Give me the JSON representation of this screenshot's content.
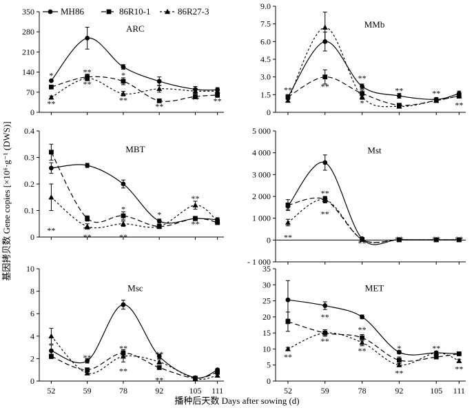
{
  "figure": {
    "ylabel": "基因拷贝数 Gene copies [×10⁶·g⁻¹ (DWS)]",
    "xlabel": "播种后天数 Days after sowing (d)",
    "legend": [
      {
        "name": "MH86",
        "marker": "circle",
        "dash": "solid"
      },
      {
        "name": "86R10-1",
        "marker": "square",
        "dash": "long-dash"
      },
      {
        "name": "86R27-3",
        "marker": "triangle",
        "dash": "short-dash"
      }
    ],
    "colors": {
      "ink": "#000000",
      "background": "#ffffff"
    }
  },
  "chart_data": [
    {
      "type": "line",
      "title": "ARC",
      "x": [
        52,
        59,
        78,
        92,
        105,
        111
      ],
      "xticks": [
        "52",
        "59",
        "78",
        "92",
        "105",
        "111"
      ],
      "ylim": [
        0,
        350
      ],
      "yticks": [
        "0",
        "70",
        "140",
        "210",
        "280",
        "350"
      ],
      "series": [
        {
          "name": "MH86",
          "values": [
            110,
            258,
            158,
            108,
            80,
            78
          ],
          "errors": [
            0,
            38,
            8,
            15,
            10,
            8
          ]
        },
        {
          "name": "86R10-1",
          "values": [
            88,
            123,
            108,
            40,
            55,
            60
          ],
          "errors": [
            0,
            10,
            12,
            6,
            8,
            8
          ]
        },
        {
          "name": "86R27-3",
          "values": [
            52,
            118,
            65,
            82,
            74,
            74
          ],
          "errors": [
            5,
            8,
            8,
            12,
            8,
            8
          ]
        }
      ],
      "annotations": [
        {
          "text": "*",
          "x": 52,
          "y": 128
        },
        {
          "text": "**",
          "x": 52,
          "y": 30
        },
        {
          "text": "**",
          "x": 59,
          "y": 140
        },
        {
          "text": "**",
          "x": 59,
          "y": 98
        },
        {
          "text": "*",
          "x": 78,
          "y": 130
        },
        {
          "text": "**",
          "x": 78,
          "y": 42
        },
        {
          "text": "**",
          "x": 92,
          "y": 20
        },
        {
          "text": "**",
          "x": 105,
          "y": 45
        },
        {
          "text": "**",
          "x": 111,
          "y": 40
        }
      ]
    },
    {
      "type": "line",
      "title": "MMb",
      "x": [
        52,
        59,
        78,
        92,
        105,
        111
      ],
      "xticks": [
        "52",
        "59",
        "78",
        "92",
        "105",
        "111"
      ],
      "ylim": [
        0,
        9
      ],
      "yticks": [
        "0",
        "1.5",
        "3.0",
        "4.5",
        "6.0",
        "7.5",
        "9.0"
      ],
      "series": [
        {
          "name": "MH86",
          "values": [
            1.3,
            6.0,
            2.2,
            1.4,
            1.1,
            1.6
          ],
          "errors": [
            0.2,
            0.8,
            0.2,
            0.2,
            0.15,
            0.2
          ]
        },
        {
          "name": "86R10-1",
          "values": [
            1.3,
            3.0,
            1.6,
            0.6,
            1.0,
            1.4
          ],
          "errors": [
            0.2,
            0.6,
            0.3,
            0.15,
            0.15,
            0.2
          ]
        },
        {
          "name": "86R27-3",
          "values": [
            1.0,
            7.2,
            1.3,
            0.5,
            1.0,
            1.4
          ],
          "errors": [
            0.15,
            1.3,
            0.2,
            0.1,
            0.15,
            0.2
          ]
        }
      ],
      "annotations": [
        {
          "text": "**",
          "x": 52,
          "y": 1.9
        },
        {
          "text": "**",
          "x": 59,
          "y": 2.2
        },
        {
          "text": "**",
          "x": 78,
          "y": 2.9
        },
        {
          "text": "*",
          "x": 78,
          "y": 0.8
        },
        {
          "text": "**",
          "x": 92,
          "y": 1.85
        },
        {
          "text": "**",
          "x": 105,
          "y": 1.6
        },
        {
          "text": "**",
          "x": 111,
          "y": 0.6
        }
      ]
    },
    {
      "type": "line",
      "title": "MBT",
      "x": [
        52,
        59,
        78,
        92,
        105,
        111
      ],
      "xticks": [
        "52",
        "59",
        "78",
        "92",
        "105",
        "111"
      ],
      "ylim": [
        0,
        0.4
      ],
      "yticks": [
        "0",
        "0.1",
        "0.2",
        "0.3",
        "0.4"
      ],
      "series": [
        {
          "name": "MH86",
          "values": [
            0.26,
            0.27,
            0.2,
            0.06,
            0.07,
            0.065
          ],
          "errors": [
            0.02,
            0.008,
            0.015,
            0.008,
            0.008,
            0.008
          ]
        },
        {
          "name": "86R10-1",
          "values": [
            0.32,
            0.07,
            0.08,
            0.04,
            0.07,
            0.055
          ],
          "errors": [
            0.03,
            0.01,
            0.015,
            0.008,
            0.008,
            0.008
          ]
        },
        {
          "name": "86R27-3",
          "values": [
            0.15,
            0.04,
            0.05,
            0.04,
            0.12,
            0.06
          ],
          "errors": [
            0.05,
            0.01,
            0.01,
            0.008,
            0.015,
            0.008
          ]
        }
      ],
      "annotations": [
        {
          "text": "**",
          "x": 52,
          "y": 0.025
        },
        {
          "text": "**",
          "x": 59,
          "y": 0.03
        },
        {
          "text": "**",
          "x": 59,
          "y": 0.0
        },
        {
          "text": "*",
          "x": 78,
          "y": 0.105
        },
        {
          "text": "**",
          "x": 78,
          "y": 0.0
        },
        {
          "text": "*",
          "x": 92,
          "y": 0.085
        },
        {
          "text": "**",
          "x": 105,
          "y": 0.145
        },
        {
          "text": "**",
          "x": 105,
          "y": 0.05
        }
      ]
    },
    {
      "type": "line",
      "title": "Mst",
      "x": [
        52,
        59,
        78,
        92,
        105,
        111
      ],
      "xticks": [
        "52",
        "59",
        "78",
        "92",
        "105",
        "111"
      ],
      "ylim": [
        -1000,
        5000
      ],
      "yticks": [
        "- 1 000",
        "0",
        "1 000",
        "2 000",
        "3 000",
        "4 000",
        "5 000"
      ],
      "series": [
        {
          "name": "MH86",
          "values": [
            1550,
            3550,
            60,
            20,
            10,
            10
          ],
          "errors": [
            150,
            350,
            30,
            10,
            10,
            10
          ]
        },
        {
          "name": "86R10-1",
          "values": [
            1600,
            1850,
            30,
            10,
            10,
            10
          ],
          "errors": [
            250,
            150,
            20,
            10,
            10,
            10
          ]
        },
        {
          "name": "86R27-3",
          "values": [
            800,
            1850,
            20,
            10,
            10,
            10
          ],
          "errors": [
            150,
            120,
            20,
            10,
            10,
            10
          ]
        }
      ],
      "annotations": [
        {
          "text": "**",
          "x": 52,
          "y": 120
        },
        {
          "text": "**",
          "x": 59,
          "y": 2150
        },
        {
          "text": "**",
          "x": 59,
          "y": 1200
        },
        {
          "text": "**",
          "x": 78,
          "y": -140
        },
        {
          "text": "**",
          "x": 92,
          "y": 40
        },
        {
          "text": "**",
          "x": 105,
          "y": 40
        },
        {
          "text": "**",
          "x": 111,
          "y": 40
        }
      ]
    },
    {
      "type": "line",
      "title": "Msc",
      "x": [
        52,
        59,
        78,
        92,
        105,
        111
      ],
      "xticks": [
        "52",
        "59",
        "78",
        "92",
        "105",
        "111"
      ],
      "ylim": [
        0,
        10
      ],
      "yticks": [
        "0",
        "2",
        "4",
        "6",
        "8",
        "10"
      ],
      "series": [
        {
          "name": "MH86",
          "values": [
            2.7,
            1.8,
            6.8,
            2.2,
            0.3,
            1.0
          ],
          "errors": [
            0.5,
            0.2,
            0.4,
            0.2,
            0.05,
            0.1
          ]
        },
        {
          "name": "86R10-1",
          "values": [
            2.2,
            1.0,
            2.5,
            1.2,
            0.25,
            0.8
          ],
          "errors": [
            0.2,
            0.15,
            0.3,
            0.15,
            0.05,
            0.1
          ]
        },
        {
          "name": "86R27-3",
          "values": [
            4.0,
            0.7,
            2.2,
            1.7,
            0.2,
            0.5
          ],
          "errors": [
            0.7,
            0.1,
            0.5,
            0.2,
            0.05,
            0.1
          ]
        }
      ],
      "annotations": [
        {
          "text": "**",
          "x": 59,
          "y": 2.1
        },
        {
          "text": "**",
          "x": 78,
          "y": 2.9
        },
        {
          "text": "**",
          "x": 78,
          "y": 0.9
        },
        {
          "text": "**",
          "x": 92,
          "y": 2.4
        },
        {
          "text": "**",
          "x": 92,
          "y": 0.1
        }
      ]
    },
    {
      "type": "line",
      "title": "MET",
      "x": [
        52,
        59,
        78,
        92,
        105,
        111
      ],
      "xticks": [
        "52",
        "59",
        "78",
        "92",
        "105",
        "111"
      ],
      "ylim": [
        0,
        35
      ],
      "yticks": [
        "0",
        "5",
        "10",
        "15",
        "20",
        "25",
        "30",
        "35"
      ],
      "series": [
        {
          "name": "MH86",
          "values": [
            25.3,
            23.5,
            20.0,
            9.0,
            8.8,
            8.5
          ],
          "errors": [
            6.0,
            1.2,
            0.6,
            0.5,
            0.5,
            0.5
          ]
        },
        {
          "name": "86R10-1",
          "values": [
            18.5,
            15.0,
            13.5,
            6.5,
            7.5,
            8.5
          ],
          "errors": [
            3.0,
            1.0,
            1.0,
            1.0,
            0.5,
            0.5
          ]
        },
        {
          "name": "86R27-3",
          "values": [
            10.0,
            15.0,
            12.0,
            5.0,
            8.8,
            6.3
          ],
          "errors": [
            0.5,
            1.0,
            1.0,
            0.5,
            0.5,
            0.5
          ]
        }
      ],
      "annotations": [
        {
          "text": "**",
          "x": 52,
          "y": 7.5
        },
        {
          "text": "**",
          "x": 59,
          "y": 20.0
        },
        {
          "text": "**",
          "x": 59,
          "y": 12.5
        },
        {
          "text": "**",
          "x": 78,
          "y": 16.0
        },
        {
          "text": "**",
          "x": 78,
          "y": 9.5
        },
        {
          "text": "*",
          "x": 92,
          "y": 10.2
        },
        {
          "text": "**",
          "x": 92,
          "y": 2.5
        },
        {
          "text": "**",
          "x": 105,
          "y": 10.2
        },
        {
          "text": "**",
          "x": 111,
          "y": 3.8
        }
      ]
    }
  ]
}
